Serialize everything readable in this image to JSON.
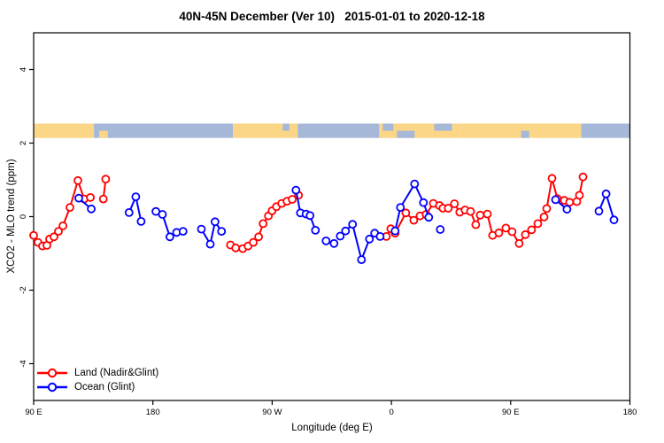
{
  "title": "40N-45N December (Ver 10)   2015-01-01 to 2020-12-18",
  "legend": {
    "items": [
      {
        "label": "Land (Nadir&Glint)",
        "color": "#ff0000"
      },
      {
        "label": "Ocean (Glint)",
        "color": "#0000ff"
      }
    ]
  },
  "colors": {
    "land_series": "#ff0000",
    "ocean_series": "#0000ff",
    "map_land": "#fbd687",
    "map_ocean": "#a6b8d8",
    "axis": "#000000"
  },
  "chart_data": {
    "type": "line",
    "title": "40N-45N December (Ver 10)   2015-01-01 to 2020-12-18",
    "xlabel": "Longitude (deg E)",
    "ylabel": "XCO2 - MLO trend (ppm)",
    "xlim": [
      90,
      540
    ],
    "ylim": [
      -5,
      5
    ],
    "grid": false,
    "legend_position": "bottom-left",
    "x_ticks": [
      {
        "lon": 90,
        "label": "90 E"
      },
      {
        "lon": 180,
        "label": "180"
      },
      {
        "lon": 270,
        "label": "90 W"
      },
      {
        "lon": 360,
        "label": "0"
      },
      {
        "lon": 450,
        "label": "90 E"
      },
      {
        "lon": 540,
        "label": "180"
      }
    ],
    "y_ticks": [
      {
        "v": -4,
        "label": "-4"
      },
      {
        "v": -2,
        "label": "-2"
      },
      {
        "v": 0,
        "label": "0"
      },
      {
        "v": 2,
        "label": "2"
      },
      {
        "v": 4,
        "label": "4"
      }
    ],
    "map_band": {
      "y_range_ppm": [
        2.14,
        2.53
      ],
      "land_color": "#fbd687",
      "ocean_color": "#a6b8d8",
      "segments": [
        {
          "from": 90,
          "to": 135.5,
          "type": "land"
        },
        {
          "from": 135.5,
          "to": 240.5,
          "type": "ocean"
        },
        {
          "from": 139.5,
          "to": 146,
          "type": "land",
          "half": "bottom"
        },
        {
          "from": 240.5,
          "to": 289.3,
          "type": "land"
        },
        {
          "from": 278,
          "to": 283,
          "type": "ocean",
          "half": "top"
        },
        {
          "from": 289.3,
          "to": 350.8,
          "type": "ocean"
        },
        {
          "from": 350.8,
          "to": 412.3,
          "type": "land"
        },
        {
          "from": 353.5,
          "to": 361.5,
          "type": "ocean",
          "half": "top"
        },
        {
          "from": 364.2,
          "to": 377.5,
          "type": "ocean",
          "half": "bottom"
        },
        {
          "from": 392.3,
          "to": 405.6,
          "type": "ocean",
          "half": "top"
        },
        {
          "from": 412.3,
          "to": 503.3,
          "type": "land"
        },
        {
          "from": 458,
          "to": 464,
          "type": "ocean",
          "half": "bottom"
        },
        {
          "from": 503.3,
          "to": 540,
          "type": "ocean"
        }
      ]
    },
    "series": [
      {
        "name": "Land (Nadir&Glint)",
        "color": "#ff0000",
        "marker": "open-circle",
        "segments": [
          [
            [
              90,
              -0.51
            ],
            [
              93.3,
              -0.7
            ],
            [
              96.7,
              -0.8
            ],
            [
              100,
              -0.78
            ],
            [
              102,
              -0.61
            ],
            [
              105.4,
              -0.55
            ],
            [
              108.7,
              -0.4
            ],
            [
              112.1,
              -0.25
            ],
            [
              117.4,
              0.25
            ],
            [
              123.4,
              0.98
            ],
            [
              128.1,
              0.48
            ],
            [
              132.8,
              0.52
            ]
          ],
          [
            [
              142.6,
              0.48
            ],
            [
              144.4,
              1.02
            ]
          ],
          [
            [
              238.5,
              -0.77
            ],
            [
              242.5,
              -0.85
            ],
            [
              247.8,
              -0.87
            ],
            [
              251.8,
              -0.8
            ],
            [
              255.8,
              -0.7
            ],
            [
              259.8,
              -0.55
            ],
            [
              263.2,
              -0.19
            ],
            [
              267.2,
              0.02
            ],
            [
              269.9,
              0.16
            ],
            [
              273.2,
              0.27
            ],
            [
              277.2,
              0.36
            ],
            [
              281.2,
              0.42
            ],
            [
              285.2,
              0.47
            ],
            [
              289.9,
              0.58
            ]
          ],
          [
            [
              356.2,
              -0.54
            ],
            [
              359.5,
              -0.33
            ],
            [
              362.8,
              -0.45
            ],
            [
              370.9,
              0.1
            ],
            [
              376.9,
              -0.1
            ],
            [
              381.6,
              0.02
            ],
            [
              386.2,
              0.06
            ],
            [
              391.6,
              0.36
            ],
            [
              396.3,
              0.3
            ],
            [
              398.9,
              0.23
            ],
            [
              402.9,
              0.23
            ],
            [
              407.6,
              0.35
            ],
            [
              411.6,
              0.12
            ],
            [
              415.6,
              0.18
            ],
            [
              419.7,
              0.14
            ],
            [
              423.7,
              -0.22
            ],
            [
              427.0,
              0.04
            ],
            [
              432.4,
              0.07
            ],
            [
              436.4,
              -0.51
            ],
            [
              441.1,
              -0.44
            ],
            [
              446.4,
              -0.31
            ],
            [
              451.1,
              -0.41
            ],
            [
              456.4,
              -0.73
            ],
            [
              461.1,
              -0.49
            ],
            [
              465.8,
              -0.36
            ],
            [
              470.5,
              -0.19
            ],
            [
              475.2,
              -0.01
            ],
            [
              477.2,
              0.22
            ],
            [
              481.2,
              1.04
            ],
            [
              485.2,
              0.49
            ],
            [
              490.5,
              0.44
            ],
            [
              494.5,
              0.39
            ],
            [
              499.9,
              0.41
            ],
            [
              501.9,
              0.58
            ],
            [
              504.6,
              1.08
            ]
          ]
        ]
      },
      {
        "name": "Ocean (Glint)",
        "color": "#0000ff",
        "marker": "open-circle",
        "segments": [
          [
            [
              124.1,
              0.5
            ],
            [
              133.5,
              0.21
            ]
          ],
          [
            [
              162.0,
              0.11
            ],
            [
              167.1,
              0.54
            ],
            [
              171.1,
              -0.13
            ]
          ],
          [
            [
              182.3,
              0.14
            ],
            [
              187.2,
              0.06
            ],
            [
              192.8,
              -0.55
            ],
            [
              197.9,
              -0.43
            ],
            [
              202.8,
              -0.4
            ]
          ],
          [
            [
              216.6,
              -0.34
            ],
            [
              223.3,
              -0.75
            ],
            [
              226.9,
              -0.14
            ],
            [
              231.8,
              -0.4
            ]
          ],
          [
            [
              288.0,
              0.72
            ],
            [
              291.3,
              0.1
            ],
            [
              295.6,
              0.07
            ],
            [
              298.6,
              0.03
            ],
            [
              302.7,
              -0.37
            ]
          ],
          [
            [
              310.7,
              -0.66
            ]
          ],
          [
            [
              316.7,
              -0.73
            ]
          ],
          [
            [
              321.4,
              -0.53
            ],
            [
              325.4,
              -0.39
            ],
            [
              330.7,
              -0.21
            ],
            [
              337.4,
              -1.17
            ],
            [
              343.4,
              -0.61
            ],
            [
              347.4,
              -0.45
            ],
            [
              351.5,
              -0.54
            ]
          ],
          [
            [
              362.8,
              -0.39
            ],
            [
              366.8,
              0.25
            ],
            [
              377.5,
              0.89
            ],
            [
              384.2,
              0.38
            ],
            [
              388.2,
              -0.02
            ]
          ],
          [
            [
              396.9,
              -0.35
            ]
          ],
          [
            [
              483.9,
              0.46
            ],
            [
              492.5,
              0.2
            ]
          ],
          [
            [
              516.6,
              0.15
            ],
            [
              522.0,
              0.62
            ],
            [
              528.0,
              -0.09
            ]
          ]
        ]
      }
    ]
  }
}
